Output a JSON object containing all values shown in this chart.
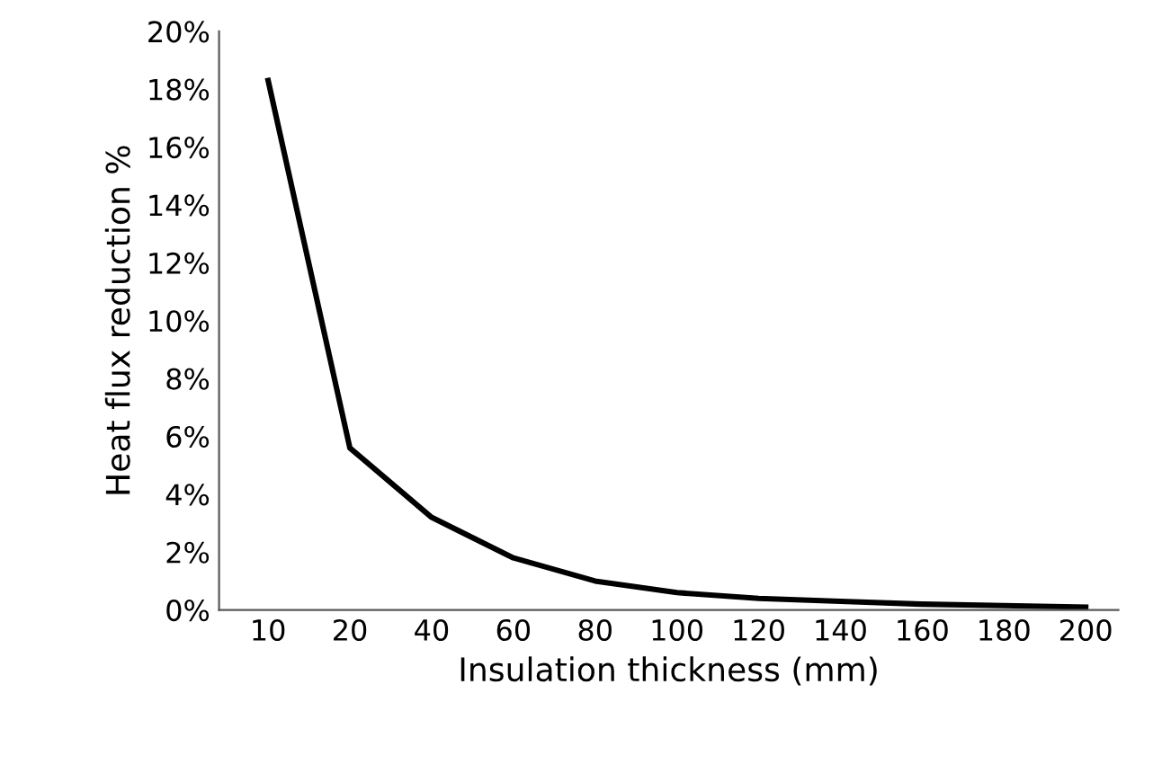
{
  "chart_data": {
    "type": "line",
    "xlabel": "Insulation thickness (mm)",
    "ylabel": "Heat flux reduction %",
    "categories": [
      "10",
      "20",
      "40",
      "60",
      "80",
      "100",
      "120",
      "140",
      "160",
      "180",
      "200"
    ],
    "series": [
      {
        "color": "#000000",
        "values": [
          18.3,
          5.6,
          3.2,
          1.8,
          1.0,
          0.6,
          0.4,
          0.3,
          0.2,
          0.15,
          0.1
        ]
      }
    ],
    "ylim": [
      0,
      20
    ],
    "yticks": [
      {
        "value": 0,
        "label": "0%"
      },
      {
        "value": 2,
        "label": "2%"
      },
      {
        "value": 4,
        "label": "4%"
      },
      {
        "value": 6,
        "label": "6%"
      },
      {
        "value": 8,
        "label": "8%"
      },
      {
        "value": 10,
        "label": "10%"
      },
      {
        "value": 12,
        "label": "12%"
      },
      {
        "value": 14,
        "label": "14%"
      },
      {
        "value": 16,
        "label": "16%"
      },
      {
        "value": 18,
        "label": "18%"
      },
      {
        "value": 20,
        "label": "20%"
      }
    ],
    "grid": false,
    "legend": false,
    "marker": "none",
    "line_style": "solid"
  }
}
